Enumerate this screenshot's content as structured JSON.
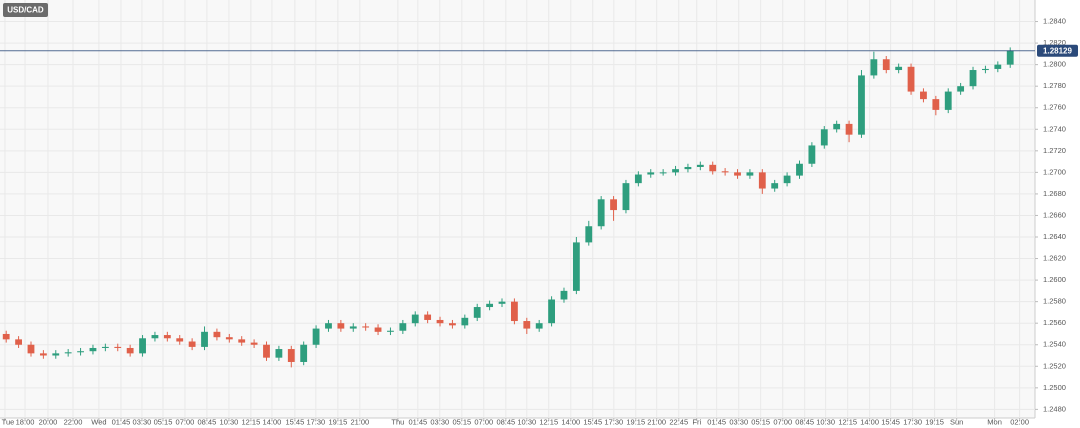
{
  "chart_data": {
    "type": "candlestick",
    "title": "USD/CAD",
    "up_color": "#2e9e7e",
    "down_color": "#e0604a",
    "last_price": 1.28129,
    "last_price_color": "#2b4a7a",
    "grid": true,
    "open": [
      1.255,
      1.2545,
      1.254,
      1.2532,
      1.253,
      1.2532,
      1.2533,
      1.2534,
      1.2537,
      1.2538,
      1.2537,
      1.2532,
      1.2546,
      1.2549,
      1.2546,
      1.2543,
      1.2538,
      1.2552,
      1.2547,
      1.2545,
      1.2542,
      1.254,
      1.2528,
      1.2536,
      1.2524,
      1.254,
      1.2555,
      1.256,
      1.2555,
      1.2557,
      1.2556,
      1.2552,
      1.2553,
      1.256,
      1.2568,
      1.2563,
      1.256,
      1.2558,
      1.2565,
      1.2575,
      1.2578,
      1.258,
      1.2562,
      1.2555,
      1.256,
      1.2582,
      1.259,
      1.2635,
      1.265,
      1.2675,
      1.2665,
      1.269,
      1.2698,
      1.27,
      1.27,
      1.2703,
      1.2705,
      1.2707,
      1.2701,
      1.27,
      1.2697,
      1.27,
      1.2685,
      1.269,
      1.2697,
      1.2708,
      1.2725,
      1.274,
      1.2745,
      1.2735,
      1.279,
      1.2805,
      1.2795,
      1.2798,
      1.2775,
      1.2768,
      1.2758,
      1.2775,
      1.278,
      1.2795,
      1.2796,
      1.28
    ],
    "high": [
      1.2553,
      1.2548,
      1.2543,
      1.2535,
      1.2535,
      1.2536,
      1.2537,
      1.254,
      1.2541,
      1.2541,
      1.254,
      1.2549,
      1.2552,
      1.2552,
      1.2549,
      1.2546,
      1.2557,
      1.2555,
      1.255,
      1.2548,
      1.2545,
      1.2543,
      1.2539,
      1.2539,
      1.2543,
      1.2558,
      1.2563,
      1.2563,
      1.256,
      1.256,
      1.2559,
      1.2556,
      1.2563,
      1.2571,
      1.2571,
      1.2566,
      1.2563,
      1.2568,
      1.2578,
      1.2581,
      1.2583,
      1.2583,
      1.2565,
      1.2563,
      1.2585,
      1.2593,
      1.264,
      1.2655,
      1.2678,
      1.2678,
      1.2693,
      1.2701,
      1.2703,
      1.2703,
      1.2706,
      1.2708,
      1.271,
      1.271,
      1.2704,
      1.2703,
      1.2703,
      1.2703,
      1.2693,
      1.27,
      1.2711,
      1.2728,
      1.2743,
      1.2748,
      1.2748,
      1.2795,
      1.2812,
      1.2808,
      1.2801,
      1.2801,
      1.2778,
      1.2771,
      1.2778,
      1.2783,
      1.2798,
      1.2799,
      1.2803,
      1.2816
    ],
    "low": [
      1.2542,
      1.2537,
      1.2529,
      1.2527,
      1.2527,
      1.2529,
      1.253,
      1.2531,
      1.2534,
      1.2534,
      1.2529,
      1.2529,
      1.2543,
      1.2543,
      1.254,
      1.2535,
      1.2535,
      1.2544,
      1.2542,
      1.2539,
      1.2537,
      1.2525,
      1.2525,
      1.2519,
      1.2521,
      1.2537,
      1.2552,
      1.2552,
      1.2552,
      1.2553,
      1.2549,
      1.2549,
      1.255,
      1.2557,
      1.256,
      1.2557,
      1.2555,
      1.2555,
      1.2562,
      1.2572,
      1.2575,
      1.2559,
      1.255,
      1.2552,
      1.2557,
      1.2579,
      1.2587,
      1.2632,
      1.2647,
      1.2655,
      1.2662,
      1.2687,
      1.2695,
      1.2697,
      1.2697,
      1.27,
      1.2702,
      1.2698,
      1.2697,
      1.2694,
      1.2694,
      1.268,
      1.2682,
      1.2687,
      1.2694,
      1.2705,
      1.2722,
      1.2737,
      1.2728,
      1.2732,
      1.2787,
      1.2792,
      1.2792,
      1.2772,
      1.2765,
      1.2753,
      1.2755,
      1.2772,
      1.2777,
      1.2792,
      1.2793,
      1.2797
    ],
    "close": [
      1.2545,
      1.254,
      1.2532,
      1.253,
      1.2532,
      1.2533,
      1.2534,
      1.2537,
      1.2538,
      1.2537,
      1.2532,
      1.2546,
      1.2549,
      1.2546,
      1.2543,
      1.2538,
      1.2552,
      1.2547,
      1.2545,
      1.2542,
      1.254,
      1.2528,
      1.2536,
      1.2524,
      1.254,
      1.2555,
      1.256,
      1.2555,
      1.2557,
      1.2556,
      1.2552,
      1.2553,
      1.256,
      1.2568,
      1.2563,
      1.256,
      1.2558,
      1.2565,
      1.2575,
      1.2578,
      1.258,
      1.2562,
      1.2555,
      1.256,
      1.2582,
      1.259,
      1.2635,
      1.265,
      1.2675,
      1.2665,
      1.269,
      1.2698,
      1.27,
      1.27,
      1.2703,
      1.2705,
      1.2707,
      1.2701,
      1.27,
      1.2697,
      1.27,
      1.2685,
      1.269,
      1.2697,
      1.2708,
      1.2725,
      1.274,
      1.2745,
      1.2735,
      1.279,
      1.2805,
      1.2795,
      1.2798,
      1.2775,
      1.2768,
      1.2758,
      1.2775,
      1.278,
      1.2795,
      1.2796,
      1.28,
      1.2813
    ],
    "ylim": [
      1.2472,
      1.286
    ],
    "yticks": [
      {
        "value": 1.248,
        "label": "1.2480"
      },
      {
        "value": 1.25,
        "label": "1.2500"
      },
      {
        "value": 1.252,
        "label": "1.2520"
      },
      {
        "value": 1.254,
        "label": "1.2540"
      },
      {
        "value": 1.256,
        "label": "1.2560"
      },
      {
        "value": 1.258,
        "label": "1.2580"
      },
      {
        "value": 1.26,
        "label": "1.2600"
      },
      {
        "value": 1.262,
        "label": "1.2620"
      },
      {
        "value": 1.264,
        "label": "1.2640"
      },
      {
        "value": 1.266,
        "label": "1.2660"
      },
      {
        "value": 1.268,
        "label": "1.2680"
      },
      {
        "value": 1.27,
        "label": "1.2700"
      },
      {
        "value": 1.272,
        "label": "1.2720"
      },
      {
        "value": 1.274,
        "label": "1.2740"
      },
      {
        "value": 1.276,
        "label": "1.2760"
      },
      {
        "value": 1.278,
        "label": "1.2780"
      },
      {
        "value": 1.28,
        "label": "1.2800"
      },
      {
        "value": 1.282,
        "label": "1.2820"
      },
      {
        "value": 1.284,
        "label": "1.2840"
      }
    ],
    "xlim": [
      -0.5,
      83
    ],
    "xticks": [
      {
        "value": -0.1,
        "label": "Tue"
      },
      {
        "value": 1.52,
        "label": "18:00"
      },
      {
        "value": 3.37,
        "label": "20:00"
      },
      {
        "value": 5.39,
        "label": "22:00"
      },
      {
        "value": 7.48,
        "label": "Wed"
      },
      {
        "value": 9.26,
        "label": "01:45"
      },
      {
        "value": 10.95,
        "label": "03:30"
      },
      {
        "value": 12.65,
        "label": "05:15"
      },
      {
        "value": 14.42,
        "label": "07:00"
      },
      {
        "value": 16.19,
        "label": "08:45"
      },
      {
        "value": 17.97,
        "label": "10:30"
      },
      {
        "value": 19.74,
        "label": "12:15"
      },
      {
        "value": 21.44,
        "label": "14:00"
      },
      {
        "value": 23.29,
        "label": "15:45"
      },
      {
        "value": 24.98,
        "label": "17:30"
      },
      {
        "value": 26.76,
        "label": "19:15"
      },
      {
        "value": 28.53,
        "label": "21:00"
      },
      {
        "value": 31.6,
        "label": "Thu"
      },
      {
        "value": 33.21,
        "label": "01:45"
      },
      {
        "value": 34.98,
        "label": "03:30"
      },
      {
        "value": 36.76,
        "label": "05:15"
      },
      {
        "value": 38.53,
        "label": "07:00"
      },
      {
        "value": 40.31,
        "label": "08:45"
      },
      {
        "value": 42.0,
        "label": "10:30"
      },
      {
        "value": 43.77,
        "label": "12:15"
      },
      {
        "value": 45.55,
        "label": "14:00"
      },
      {
        "value": 47.32,
        "label": "15:45"
      },
      {
        "value": 49.02,
        "label": "17:30"
      },
      {
        "value": 50.79,
        "label": "19:15"
      },
      {
        "value": 52.48,
        "label": "21:00"
      },
      {
        "value": 54.26,
        "label": "22:45"
      },
      {
        "value": 55.71,
        "label": "Fri"
      },
      {
        "value": 57.32,
        "label": "01:45"
      },
      {
        "value": 59.1,
        "label": "03:30"
      },
      {
        "value": 60.87,
        "label": "05:15"
      },
      {
        "value": 62.65,
        "label": "07:00"
      },
      {
        "value": 64.42,
        "label": "08:45"
      },
      {
        "value": 66.11,
        "label": "10:30"
      },
      {
        "value": 67.89,
        "label": "12:15"
      },
      {
        "value": 69.66,
        "label": "14:00"
      },
      {
        "value": 71.35,
        "label": "15:45"
      },
      {
        "value": 73.13,
        "label": "17:30"
      },
      {
        "value": 74.9,
        "label": "19:15"
      },
      {
        "value": 76.68,
        "label": "Sun"
      },
      {
        "value": 79.74,
        "label": "Mon"
      },
      {
        "value": 81.76,
        "label": "02:00"
      }
    ]
  }
}
